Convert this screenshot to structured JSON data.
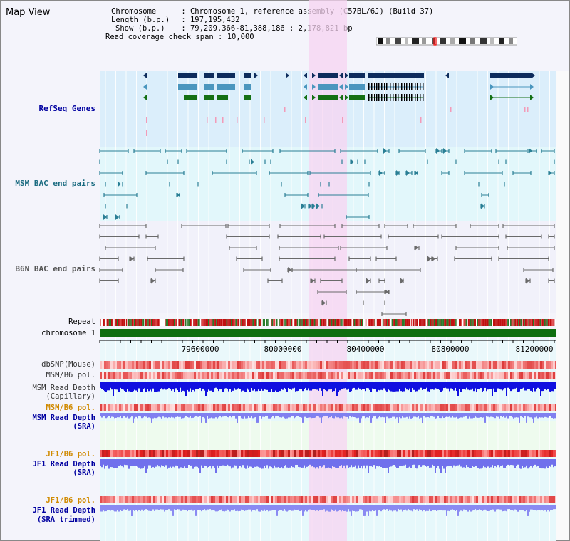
{
  "app": {
    "title": "Map View"
  },
  "info": {
    "chromosome_label": "Chromosome",
    "chromosome_value": "Chromosome 1, reference assembly (C57BL/6J) (Build 37)",
    "length_label": "Length (b.p.)",
    "length_value": "197,195,432",
    "show_label": "Show (b.p.)",
    "show_value": "79,209,366-81,388,186 : 2,178,821 bp",
    "coverage_label": "Read coverage check span",
    "coverage_value": "10,000"
  },
  "tracks": {
    "refseq": "RefSeq Genes",
    "msm_bac": "MSM BAC end pairs",
    "b6n_bac": "B6N BAC end pairs",
    "repeat": "Repeat",
    "chromosome": "chromosome 1",
    "dbsnp": "dbSNP(Mouse)",
    "msm_b6_pol_1": "MSM/B6 pol.",
    "msm_read_depth_cap_1": "MSM Read Depth",
    "msm_read_depth_cap_2": "(Capillary)",
    "msm_b6_pol_2": "MSM/B6 pol.",
    "msm_read_depth_sra_1": "MSM Read Depth",
    "msm_read_depth_sra_2": "(SRA)",
    "jf1_b6_pol_1": "JF1/B6 pol.",
    "jf1_read_depth_sra_1": "JF1 Read Depth",
    "jf1_read_depth_sra_2": "(SRA)",
    "jf1_b6_pol_2": "JF1/B6 pol.",
    "jf1_read_depth_trim_1": "JF1 Read Depth",
    "jf1_read_depth_trim_2": "(SRA trimmed)"
  },
  "axis": {
    "ticks": [
      "79600000",
      "80000000",
      "80400000",
      "80800000",
      "81200000"
    ]
  },
  "colors": {
    "refseq_bg": "#dbeefb",
    "msm_bg": "#e2f7fb",
    "b6n_bg": "#f1f1fa",
    "highlight": "#f7d4f2",
    "gene_dark": "#0d2c5c",
    "gene_mid": "#4a96be",
    "gene_green": "#147014",
    "msm_line": "#2a7f95",
    "b6n_line": "#6a6a6a",
    "chromosome": "#0f6e0f",
    "label_blue": "#0000a0",
    "label_teal": "#1a6b80",
    "label_orange": "#d08a00"
  }
}
